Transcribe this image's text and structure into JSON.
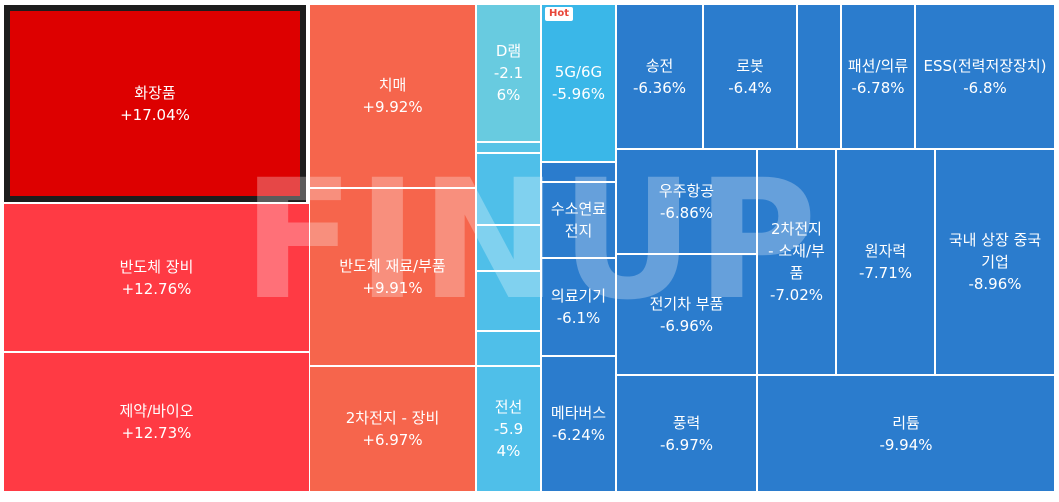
{
  "colors": {
    "strong_red": "#dd0000",
    "red": "#ff3a44",
    "salmon": "#f6654c",
    "light_cyan": "#68cbe0",
    "sky": "#3ab7e8",
    "blue": "#2b7ccd"
  },
  "hot_badge": "Hot",
  "watermark": "FINUP",
  "tiles": [
    {
      "name": "화장품",
      "pct": "+17.04%",
      "color": "#dd0000",
      "selected": true
    },
    {
      "name": "반도체 장비",
      "pct": "+12.76%",
      "color": "#ff3a44"
    },
    {
      "name": "제약/바이오",
      "pct": "+12.73%",
      "color": "#ff3a44"
    },
    {
      "name": "치매",
      "pct": "+9.92%",
      "color": "#f6654c"
    },
    {
      "name": "반도체 재료/부품",
      "pct": "+9.91%",
      "color": "#f6654c"
    },
    {
      "name": "2차전지 - 장비",
      "pct": "+6.97%",
      "color": "#f6654c"
    },
    {
      "name": "D램",
      "pct": "-2.16%",
      "color": "#68cbe0"
    },
    {
      "name": "",
      "pct": "",
      "color": "#58c3e6"
    },
    {
      "name": "",
      "pct": "",
      "color": "#4fbfe9"
    },
    {
      "name": "",
      "pct": "",
      "color": "#4fbfe9"
    },
    {
      "name": "",
      "pct": "",
      "color": "#4fbfe9"
    },
    {
      "name": "",
      "pct": "",
      "color": "#4fbfe9"
    },
    {
      "name": "전선",
      "pct": "-5.94%",
      "color": "#4fbfe9"
    },
    {
      "name": "5G/6G",
      "pct": "-5.96%",
      "color": "#3ab7e8",
      "hot": true
    },
    {
      "name": "",
      "pct": "",
      "color": "#2b7ccd"
    },
    {
      "name": "수소연료전지",
      "pct": "",
      "color": "#2b7ccd"
    },
    {
      "name": "의료기기",
      "pct": "-6.1%",
      "color": "#2b7ccd"
    },
    {
      "name": "메타버스",
      "pct": "-6.24%",
      "color": "#2b7ccd"
    },
    {
      "name": "송전",
      "pct": "-6.36%",
      "color": "#2b7ccd"
    },
    {
      "name": "로봇",
      "pct": "-6.4%",
      "color": "#2b7ccd"
    },
    {
      "name": "",
      "pct": "",
      "color": "#2b7ccd"
    },
    {
      "name": "패션/의류",
      "pct": "-6.78%",
      "color": "#2b7ccd"
    },
    {
      "name": "ESS(전력저장장치)",
      "pct": "-6.8%",
      "color": "#2b7ccd"
    },
    {
      "name": "우주항공",
      "pct": "-6.86%",
      "color": "#2b7ccd"
    },
    {
      "name": "전기차 부품",
      "pct": "-6.96%",
      "color": "#2b7ccd"
    },
    {
      "name": "2차전지 - 소재/부품",
      "pct": "-7.02%",
      "color": "#2b7ccd"
    },
    {
      "name": "원자력",
      "pct": "-7.71%",
      "color": "#2b7ccd"
    },
    {
      "name": "국내 상장 중국기업",
      "pct": "-8.96%",
      "color": "#2b7ccd"
    },
    {
      "name": "풍력",
      "pct": "-6.97%",
      "color": "#2b7ccd"
    },
    {
      "name": "리튬",
      "pct": "-9.94%",
      "color": "#2b7ccd"
    }
  ]
}
